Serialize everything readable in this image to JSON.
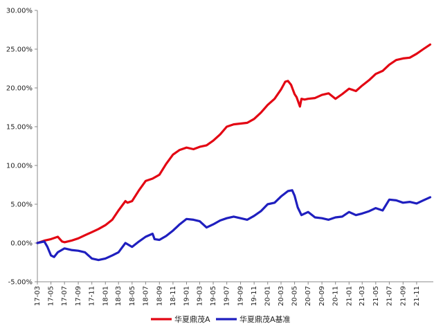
{
  "chart_data": {
    "type": "line",
    "title": "",
    "xlabel": "",
    "ylabel": "",
    "ylim": [
      -5,
      30
    ],
    "yticks": [
      "-5.00%",
      "0.00%",
      "5.00%",
      "10.00%",
      "15.00%",
      "20.00%",
      "25.00%",
      "30.00%"
    ],
    "ytick_values": [
      -5,
      0,
      5,
      10,
      15,
      20,
      25,
      30
    ],
    "x_categories": [
      "17-03",
      "17-05",
      "17-07",
      "17-09",
      "17-11",
      "18-01",
      "18-03",
      "18-05",
      "18-07",
      "18-09",
      "18-11",
      "19-01",
      "19-03",
      "19-05",
      "19-07",
      "19-09",
      "19-11",
      "20-01",
      "20-03",
      "20-05",
      "20-07",
      "20-09",
      "20-11",
      "21-01",
      "21-03",
      "21-05",
      "21-07",
      "21-09",
      "21-11"
    ],
    "grid": false,
    "legend_position": "bottom",
    "series": [
      {
        "name": "华夏鼎茂A",
        "color": "#e30613",
        "x": [
          "2017-03",
          "2017-04",
          "2017-05",
          "2017-06",
          "2017-06-20",
          "2017-07",
          "2017-08",
          "2017-09",
          "2017-10",
          "2017-11",
          "2017-12",
          "2018-01",
          "2018-02",
          "2018-03",
          "2018-04",
          "2018-04-10",
          "2018-05",
          "2018-06",
          "2018-07",
          "2018-08",
          "2018-09",
          "2018-10",
          "2018-11",
          "2018-12",
          "2019-01",
          "2019-02",
          "2019-03",
          "2019-04",
          "2019-05",
          "2019-06",
          "2019-07",
          "2019-08",
          "2019-09",
          "2019-10",
          "2019-11",
          "2019-12",
          "2020-01",
          "2020-02",
          "2020-03",
          "2020-03-20",
          "2020-04",
          "2020-04-15",
          "2020-05",
          "2020-05-10",
          "2020-05-25",
          "2020-06",
          "2020-06-15",
          "2020-07",
          "2020-08",
          "2020-09",
          "2020-10",
          "2020-11",
          "2020-12",
          "2021-01",
          "2021-02",
          "2021-03",
          "2021-04",
          "2021-05",
          "2021-06",
          "2021-07",
          "2021-08",
          "2021-09",
          "2021-10",
          "2021-11",
          "2021-12",
          "2022-01"
        ],
        "values": [
          0.0,
          0.3,
          0.5,
          0.8,
          0.2,
          0.1,
          0.3,
          0.6,
          1.0,
          1.4,
          1.8,
          2.3,
          3.0,
          4.2,
          5.4,
          5.2,
          5.4,
          6.8,
          8.0,
          8.3,
          8.8,
          10.2,
          11.4,
          12.0,
          12.3,
          12.1,
          12.4,
          12.6,
          13.2,
          14.0,
          15.0,
          15.3,
          15.4,
          15.5,
          16.0,
          16.8,
          17.8,
          18.6,
          19.8,
          20.8,
          20.9,
          20.4,
          19.2,
          18.8,
          17.6,
          18.6,
          18.5,
          18.6,
          18.7,
          19.1,
          19.3,
          18.6,
          19.2,
          19.9,
          19.6,
          20.3,
          21.0,
          21.8,
          22.2,
          23.0,
          23.6,
          23.8,
          23.9,
          24.4,
          25.0,
          25.6
        ]
      },
      {
        "name": "华夏鼎茂A基准",
        "color": "#1f1fbf",
        "x": [
          "2017-03",
          "2017-04",
          "2017-04-15",
          "2017-05",
          "2017-05-15",
          "2017-06",
          "2017-07",
          "2017-08",
          "2017-09",
          "2017-10",
          "2017-11",
          "2017-12",
          "2018-01",
          "2018-02",
          "2018-03",
          "2018-04",
          "2018-05",
          "2018-06",
          "2018-07",
          "2018-08",
          "2018-08-10",
          "2018-09",
          "2018-10",
          "2018-11",
          "2018-12",
          "2019-01",
          "2019-02",
          "2019-03",
          "2019-04",
          "2019-05",
          "2019-06",
          "2019-07",
          "2019-08",
          "2019-09",
          "2019-10",
          "2019-11",
          "2019-12",
          "2020-01",
          "2020-02",
          "2020-03",
          "2020-04",
          "2020-04-20",
          "2020-05",
          "2020-05-15",
          "2020-06",
          "2020-07",
          "2020-08",
          "2020-09",
          "2020-10",
          "2020-11",
          "2020-12",
          "2021-01",
          "2021-02",
          "2021-03",
          "2021-04",
          "2021-05",
          "2021-06",
          "2021-07",
          "2021-08",
          "2021-09",
          "2021-10",
          "2021-11",
          "2021-12",
          "2022-01"
        ],
        "values": [
          0.0,
          0.2,
          -0.5,
          -1.6,
          -1.8,
          -1.2,
          -0.7,
          -0.9,
          -1.0,
          -1.2,
          -2.0,
          -2.2,
          -2.0,
          -1.6,
          -1.2,
          0.0,
          -0.5,
          0.2,
          0.8,
          1.2,
          0.5,
          0.4,
          0.9,
          1.6,
          2.4,
          3.1,
          3.0,
          2.8,
          2.0,
          2.4,
          2.9,
          3.2,
          3.4,
          3.2,
          3.0,
          3.5,
          4.1,
          5.0,
          5.2,
          6.0,
          6.7,
          6.8,
          6.1,
          4.6,
          3.6,
          4.0,
          3.3,
          3.2,
          3.0,
          3.3,
          3.4,
          4.0,
          3.6,
          3.8,
          4.1,
          4.5,
          4.2,
          5.6,
          5.5,
          5.2,
          5.3,
          5.1,
          5.5,
          5.9
        ]
      }
    ]
  }
}
